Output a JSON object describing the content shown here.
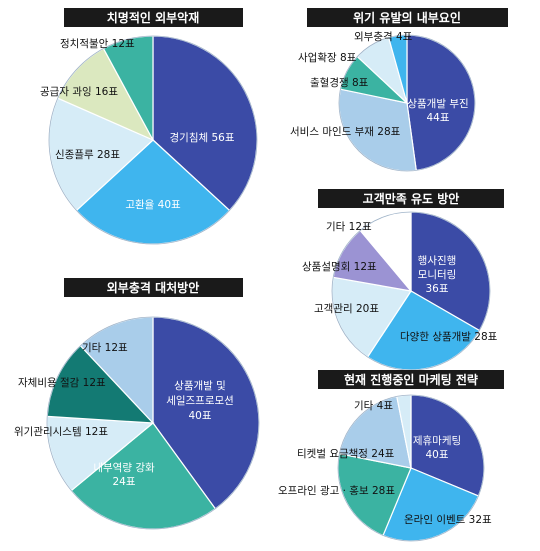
{
  "chart_data": [
    {
      "type": "pie",
      "title": "치명적인 외부악재",
      "unit": "표",
      "slices": [
        {
          "name": "경기침체",
          "value": 56,
          "color": "#3b4ba6"
        },
        {
          "name": "고환율",
          "value": 40,
          "color": "#3fb5ee"
        },
        {
          "name": "신종플루",
          "value": 28,
          "color": "#d6ecf7"
        },
        {
          "name": "공급자 과잉",
          "value": 16,
          "color": "#dbe8bf"
        },
        {
          "name": "정치적불안",
          "value": 12,
          "color": "#3bb3a2"
        }
      ],
      "labels": [
        "경기침체 56표",
        "고환율 40표",
        "신종플루 28표",
        "공급자 과잉 16표",
        "정치적불안 12표"
      ]
    },
    {
      "type": "pie",
      "title": "위기 유발의 내부요인",
      "unit": "표",
      "slices": [
        {
          "name": "상품개발 부진",
          "value": 44,
          "color": "#3b4ba6"
        },
        {
          "name": "서비스 마인드 부재",
          "value": 28,
          "color": "#a9cdea"
        },
        {
          "name": "출혈경쟁",
          "value": 8,
          "color": "#3bb3a2"
        },
        {
          "name": "사업확장",
          "value": 8,
          "color": "#d6ecf7"
        },
        {
          "name": "외부충격",
          "value": 4,
          "color": "#3fb5ee"
        }
      ],
      "labels": [
        "상품개발 부진",
        "44표",
        "서비스 마인드 부재 28표",
        "출혈경쟁 8표",
        "사업확장 8표",
        "외부충격 4표"
      ]
    },
    {
      "type": "pie",
      "title": "고객만족 유도 방안",
      "unit": "표",
      "slices": [
        {
          "name": "행사진행 모니터링",
          "value": 36,
          "color": "#3b4ba6"
        },
        {
          "name": "다양한 상품개발",
          "value": 28,
          "color": "#3fb5ee"
        },
        {
          "name": "고객관리",
          "value": 20,
          "color": "#d6ecf7"
        },
        {
          "name": "상품설명회",
          "value": 12,
          "color": "#9b93d3"
        },
        {
          "name": "기타",
          "value": 12,
          "color": "#ffffff"
        }
      ],
      "labels": [
        "행사진행",
        "모니터링",
        "36표",
        "다양한 상품개발 28표",
        "고객관리 20표",
        "상품설명회 12표",
        "기타 12표"
      ]
    },
    {
      "type": "pie",
      "title": "외부충격 대처방안",
      "unit": "표",
      "slices": [
        {
          "name": "상품개발 및 세일즈프로모션",
          "value": 40,
          "color": "#3b4ba6"
        },
        {
          "name": "내부역량 강화",
          "value": 24,
          "color": "#3bb3a2"
        },
        {
          "name": "위기관리시스템",
          "value": 12,
          "color": "#d6ecf7"
        },
        {
          "name": "자체비용 절감",
          "value": 12,
          "color": "#137a73"
        },
        {
          "name": "기타",
          "value": 12,
          "color": "#a9cdea"
        }
      ],
      "labels": [
        "상품개발 및",
        "세일즈프로모션",
        "40표",
        "내부역량 강화",
        "24표",
        "위기관리시스템 12표",
        "자체비용 절감 12표",
        "기타 12표"
      ]
    },
    {
      "type": "pie",
      "title": "현재 진행중인 마케팅 전략",
      "unit": "표",
      "slices": [
        {
          "name": "제휴마케팅",
          "value": 40,
          "color": "#3b4ba6"
        },
        {
          "name": "온라인 이벤트",
          "value": 32,
          "color": "#3fb5ee"
        },
        {
          "name": "오프라인 광고·홍보",
          "value": 28,
          "color": "#3bb3a2"
        },
        {
          "name": "티켓벌 요금책정",
          "value": 24,
          "color": "#a9cdea"
        },
        {
          "name": "기타",
          "value": 4,
          "color": "#d6ecf7"
        }
      ],
      "labels": [
        "제휴마케팅",
        "40표",
        "온라인 이벤트 32표",
        "오프라인 광고 · 홍보 28표",
        "티켓벌 요금책정 24표",
        "기타 4표"
      ]
    }
  ]
}
